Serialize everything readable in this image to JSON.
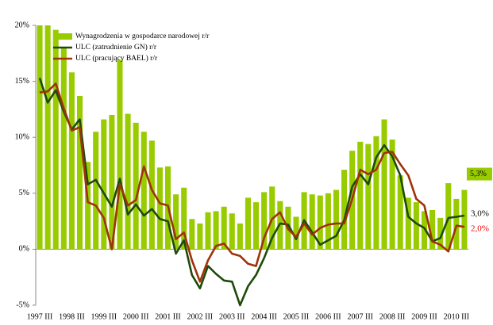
{
  "chart_data": {
    "type": "bar_line",
    "categories": [
      "1997 III",
      null,
      null,
      null,
      "1998 III",
      null,
      null,
      null,
      "1999 III",
      null,
      null,
      null,
      "2000 III",
      null,
      null,
      null,
      "2001 III",
      null,
      null,
      null,
      "2002 III",
      null,
      null,
      null,
      "2003 III",
      null,
      null,
      null,
      "2004 III",
      null,
      null,
      null,
      "2005 III",
      null,
      null,
      null,
      "2006 III",
      null,
      null,
      null,
      "2007 III",
      null,
      null,
      null,
      "2008 III",
      null,
      null,
      null,
      "2009 III",
      null,
      null,
      null,
      "2010 III",
      null
    ],
    "series": [
      {
        "name": "Wynagrodzenia w gospodarce narodowej r/r",
        "kind": "bar",
        "color": "#99cc00",
        "values": [
          20,
          20,
          19.6,
          18,
          15.8,
          13.7,
          7.8,
          10.5,
          11.6,
          12,
          16.9,
          12.1,
          11.3,
          10.5,
          9.7,
          7.3,
          7.4,
          4.9,
          5.5,
          2.7,
          2.3,
          3.3,
          3.4,
          3.8,
          3.2,
          2.3,
          4.6,
          4.2,
          5.1,
          5.6,
          4.3,
          3.8,
          2.9,
          5.1,
          4.9,
          4.8,
          5.0,
          5.3,
          7.1,
          8.8,
          9.6,
          9.4,
          10.1,
          11.6,
          9.8,
          6.6,
          4.6,
          4.2,
          3.4,
          3.5,
          2.8,
          5.9,
          4.5,
          5.3
        ],
        "value_labels": [
          null,
          null,
          null,
          null,
          null,
          null,
          null,
          null,
          null,
          null,
          null,
          null,
          null,
          null,
          null,
          null,
          null,
          null,
          null,
          null,
          null,
          null,
          null,
          null,
          null,
          null,
          null,
          null,
          null,
          null,
          null,
          null,
          null,
          null,
          null,
          null,
          null,
          null,
          null,
          null,
          null,
          null,
          null,
          null,
          null,
          null,
          null,
          null,
          null,
          null,
          null,
          null,
          null,
          "5,3%"
        ]
      },
      {
        "name": "ULC (zatrudnienie GN) r/r",
        "kind": "line",
        "color": "#1e4a0a",
        "values": [
          15.3,
          13.1,
          14.2,
          12.3,
          10.7,
          11.6,
          5.8,
          6.2,
          5.0,
          3.8,
          6.3,
          3.1,
          4.0,
          3.0,
          3.6,
          2.7,
          2.5,
          -0.4,
          0.8,
          -2.3,
          -3.5,
          -1.5,
          -2.2,
          -2.8,
          -2.9,
          -5.0,
          -3.3,
          -2.3,
          -0.8,
          1.0,
          2.3,
          2.2,
          0.9,
          2.6,
          1.5,
          0.4,
          0.8,
          1.2,
          2.6,
          5.6,
          6.7,
          5.8,
          8.2,
          9.3,
          8.3,
          6.6,
          2.9,
          2.3,
          1.9,
          0.7,
          1.0,
          2.8,
          2.9,
          3.0
        ],
        "value_labels": [
          null,
          null,
          null,
          null,
          null,
          null,
          null,
          null,
          null,
          null,
          null,
          null,
          null,
          null,
          null,
          null,
          null,
          null,
          null,
          null,
          null,
          null,
          null,
          null,
          null,
          null,
          null,
          null,
          null,
          null,
          null,
          null,
          null,
          null,
          null,
          null,
          null,
          null,
          null,
          null,
          null,
          null,
          null,
          null,
          null,
          null,
          null,
          null,
          null,
          null,
          null,
          null,
          null,
          "3,0%"
        ]
      },
      {
        "name": "ULC (pracujący BAEL) r/r",
        "kind": "line",
        "color": "#a0320a",
        "values": [
          14.0,
          14.1,
          14.8,
          12.6,
          10.6,
          10.9,
          4.2,
          3.9,
          2.8,
          0.0,
          5.8,
          3.9,
          4.4,
          7.4,
          5.3,
          4.1,
          3.9,
          0.9,
          1.5,
          -1.0,
          -2.9,
          -1.0,
          0.3,
          0.5,
          -0.4,
          -0.6,
          -1.3,
          -1.5,
          1.0,
          2.7,
          3.3,
          1.8,
          1.1,
          2.3,
          1.3,
          1.9,
          2.2,
          2.3,
          2.3,
          4.5,
          7.1,
          6.7,
          7.1,
          8.6,
          8.7,
          7.6,
          6.6,
          4.5,
          3.9,
          0.7,
          0.4,
          -0.2,
          2.1,
          2.0
        ],
        "value_labels": [
          null,
          null,
          null,
          null,
          null,
          null,
          null,
          null,
          null,
          null,
          null,
          null,
          null,
          null,
          null,
          null,
          null,
          null,
          null,
          null,
          null,
          null,
          null,
          null,
          null,
          null,
          null,
          null,
          null,
          null,
          null,
          null,
          null,
          null,
          null,
          null,
          null,
          null,
          null,
          null,
          null,
          null,
          null,
          null,
          null,
          null,
          null,
          null,
          null,
          null,
          null,
          null,
          null,
          "2,0%"
        ]
      }
    ],
    "ylim": [
      -5,
      20
    ],
    "yticks": [
      {
        "value": -5,
        "label": "-5%"
      },
      {
        "value": 0,
        "label": "0%"
      },
      {
        "value": 5,
        "label": "5%"
      },
      {
        "value": 10,
        "label": "10%"
      },
      {
        "value": 15,
        "label": "15%"
      },
      {
        "value": 20,
        "label": "20%"
      }
    ],
    "grid": false,
    "legend": "upper left"
  }
}
